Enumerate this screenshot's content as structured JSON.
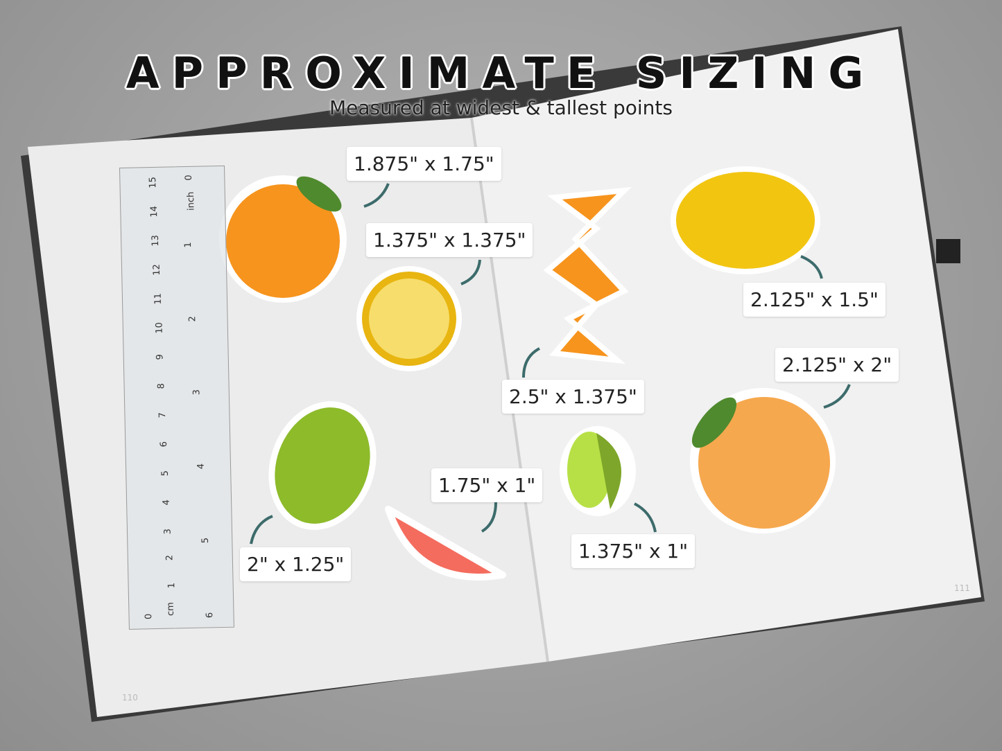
{
  "header": {
    "title": "APPROXIMATE SIZING",
    "subtitle": "Measured at widest & tallest points"
  },
  "labels": [
    {
      "id": "orange-with-leaf",
      "text": "1.875\" x 1.75\""
    },
    {
      "id": "lemon-slice",
      "text": "1.375\" x 1.375\""
    },
    {
      "id": "lemon",
      "text": "2.125\" x 1.5\""
    },
    {
      "id": "grapefruit",
      "text": "2.125\" x 2\""
    },
    {
      "id": "orange-peel",
      "text": "2.5\" x 1.375\""
    },
    {
      "id": "grapefruit-wedge",
      "text": "1.75\" x 1\""
    },
    {
      "id": "lime-half",
      "text": "1.375\" x 1\""
    },
    {
      "id": "lime",
      "text": "2\" x 1.25\""
    }
  ],
  "ruler": {
    "cm_label": "cm",
    "inch_label": "inch",
    "cm": [
      "0",
      "1",
      "2",
      "3",
      "4",
      "5",
      "6",
      "7",
      "8",
      "9",
      "10",
      "11",
      "12",
      "13",
      "14",
      "15"
    ],
    "inch": [
      "0",
      "1",
      "2",
      "3",
      "4",
      "5",
      "6"
    ]
  },
  "page_numbers": {
    "left": "110",
    "right": "111"
  },
  "colors": {
    "arrow": "#3d6b6b",
    "orange": "#f7941d",
    "lemon": "#f2c511",
    "lime": "#8dbb2a",
    "grapefruit": "#f46c5e"
  }
}
